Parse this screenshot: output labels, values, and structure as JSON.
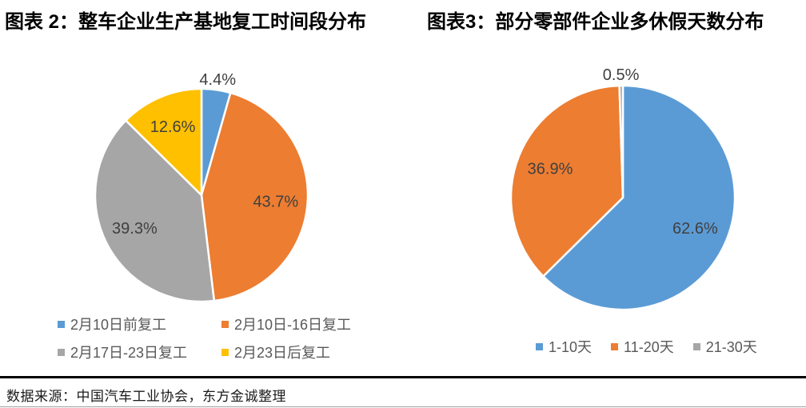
{
  "source": {
    "text": "数据来源：中国汽车工业协会，东方金诚整理"
  },
  "style": {
    "separator_color": "#000000",
    "legend_text_color": "#595959",
    "data_label_color": "#404040",
    "palette": {
      "blue": "#5B9BD5",
      "orange": "#ED7D31",
      "gray": "#A6A6A6",
      "yellow": "#FFC000"
    }
  },
  "chart_data": [
    {
      "type": "pie",
      "title": "图表 2：整车企业生产基地复工时间段分布",
      "categories": [
        "2月10日前复工",
        "2月10日-16日复工",
        "2月17日-23日复工",
        "2月23日后复工"
      ],
      "values": [
        4.4,
        43.7,
        39.3,
        12.6
      ],
      "data_labels": [
        "4.4%",
        "43.7%",
        "39.3%",
        "12.6%"
      ],
      "colors": [
        "#5B9BD5",
        "#ED7D31",
        "#A6A6A6",
        "#FFC000"
      ],
      "label_color": "#404040",
      "start_angle": 0,
      "direction": "clockwise",
      "legend_position": "bottom",
      "legend_columns": 2
    },
    {
      "type": "pie",
      "title": "图表3：部分零部件企业多休假天数分布",
      "categories": [
        "1-10天",
        "11-20天",
        "21-30天"
      ],
      "values": [
        62.6,
        36.9,
        0.5
      ],
      "data_labels": [
        "62.6%",
        "36.9%",
        "0.5%"
      ],
      "colors": [
        "#5B9BD5",
        "#ED7D31",
        "#A6A6A6"
      ],
      "label_color": "#404040",
      "start_angle": 0,
      "direction": "clockwise",
      "legend_position": "bottom",
      "legend_columns": 3
    }
  ]
}
